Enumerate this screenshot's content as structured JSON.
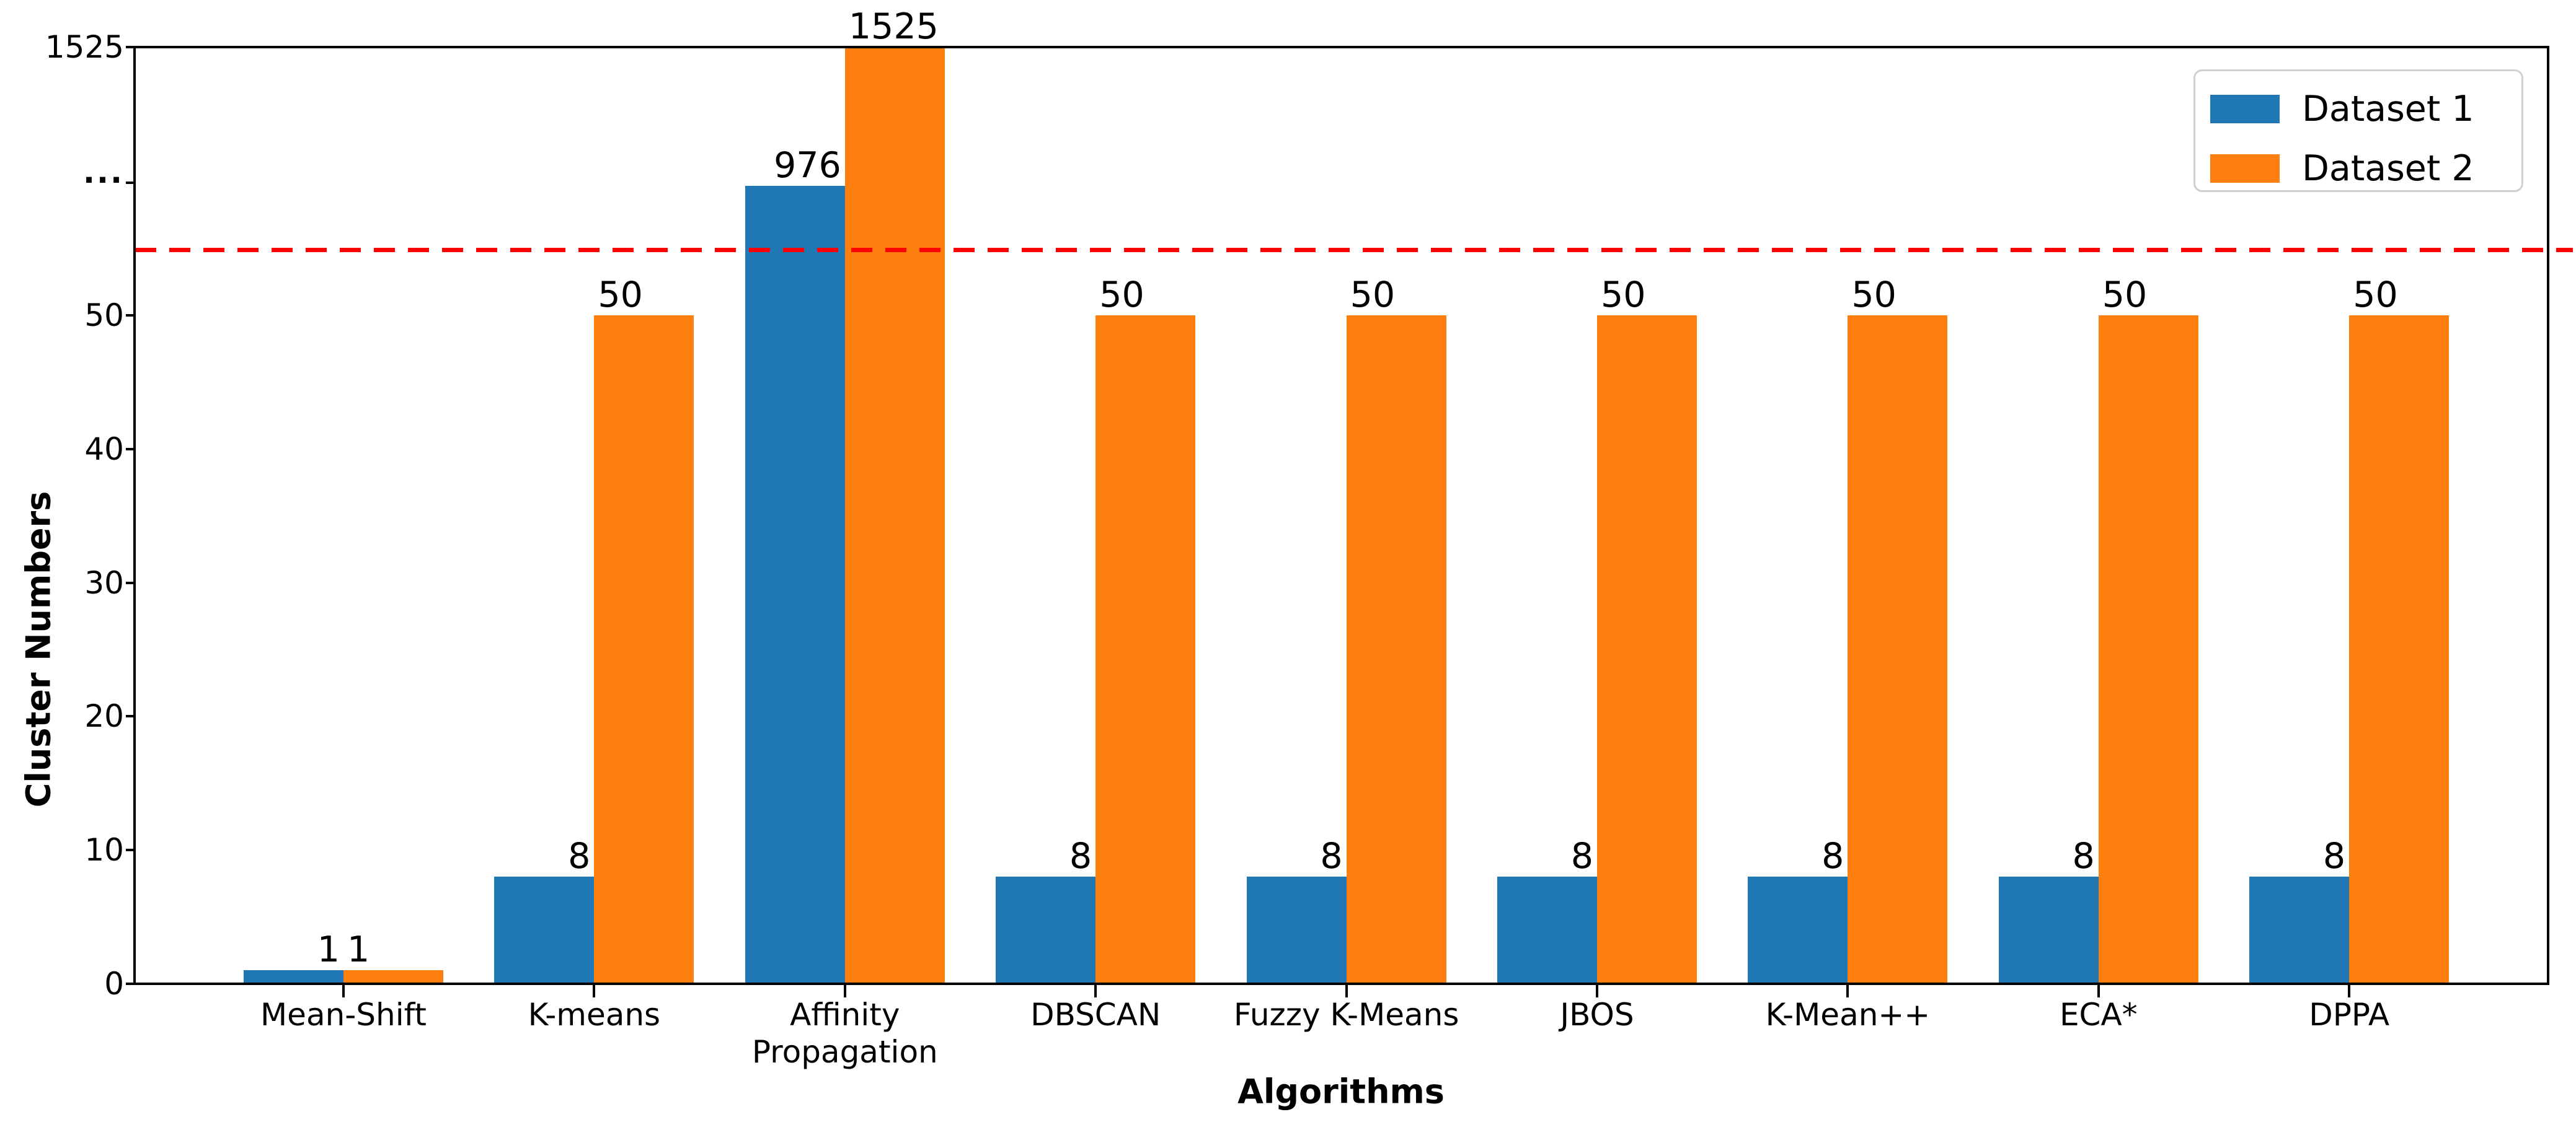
{
  "chart_data": {
    "type": "bar",
    "title": "",
    "xlabel": "Algorithms",
    "ylabel": "Cluster Numbers",
    "categories": [
      "Mean-Shift",
      "K-means",
      "Affinity\nPropagation",
      "DBSCAN",
      "Fuzzy K-Means",
      "JBOS",
      "K-Mean++",
      "ECA*",
      "DPPA"
    ],
    "series": [
      {
        "name": "Dataset 1",
        "color": "#1f77b4",
        "values": [
          1,
          8,
          976,
          8,
          8,
          8,
          8,
          8,
          8
        ]
      },
      {
        "name": "Dataset 2",
        "color": "#ff7f0e",
        "values": [
          1,
          50,
          1525,
          50,
          50,
          50,
          50,
          50,
          50
        ]
      }
    ],
    "bar_value_labels": [
      [
        "1",
        "8",
        "976",
        "8",
        "8",
        "8",
        "8",
        "8",
        "8"
      ],
      [
        "1",
        "50",
        "1525",
        "50",
        "50",
        "50",
        "50",
        "50",
        "50"
      ]
    ],
    "y_axis": {
      "ticks": [
        0,
        10,
        20,
        30,
        40,
        50
      ],
      "break_marker": "...",
      "top_tick_label": "1525",
      "range_note": "broken axis: linear 0-50, compressed above break up to 1525"
    },
    "reference_line": {
      "color": "#ff0000",
      "style": "dashed",
      "location": "horizontal, between 50 tick and axis break"
    },
    "legend": {
      "position": "upper right",
      "entries": [
        "Dataset 1",
        "Dataset 2"
      ]
    },
    "grid": "off"
  }
}
